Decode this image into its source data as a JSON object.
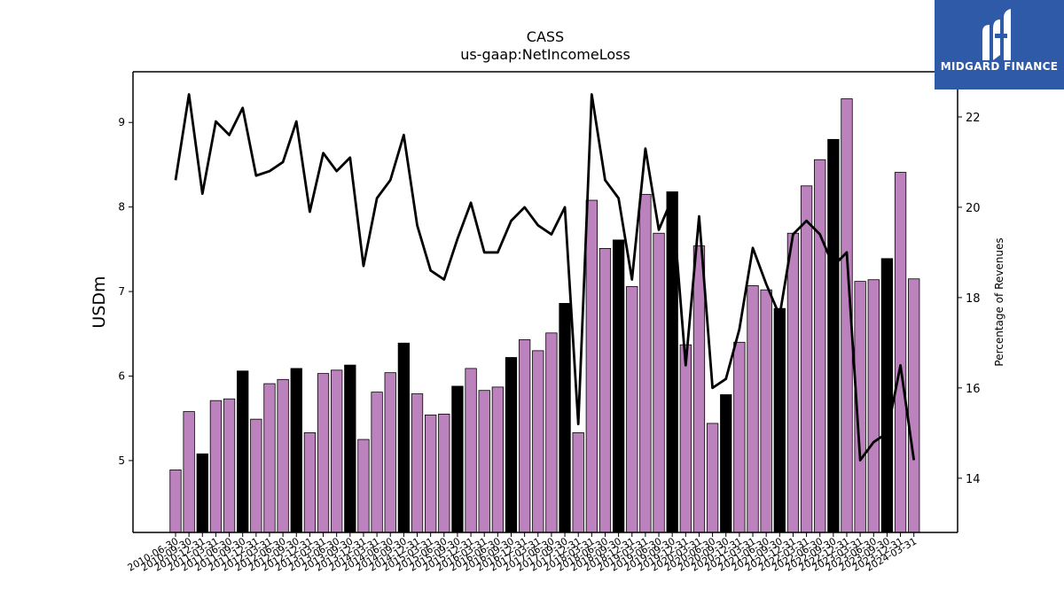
{
  "chart_data": {
    "type": "bar",
    "title": "CASS",
    "subtitle": "us-gaap:NetIncomeLoss",
    "ylabel": "USDm",
    "y2label": "Percentage of Revenues",
    "ylim": [
      4.15,
      9.6
    ],
    "y2lim": [
      12.8,
      23.0
    ],
    "yticks": [
      5,
      6,
      7,
      8,
      9
    ],
    "y2ticks": [
      14,
      16,
      18,
      20,
      22
    ],
    "categories": [
      "2010-06-30",
      "2010-09-30",
      "2010-12-31",
      "2011-03-31",
      "2011-06-30",
      "2011-09-30",
      "2011-12-31",
      "2012-03-31",
      "2012-06-30",
      "2012-09-30",
      "2012-12-31",
      "2013-03-31",
      "2013-06-30",
      "2013-09-30",
      "2013-12-31",
      "2014-03-31",
      "2014-06-30",
      "2014-09-30",
      "2014-12-31",
      "2015-03-31",
      "2015-06-30",
      "2015-09-30",
      "2015-12-31",
      "2016-03-31",
      "2016-06-30",
      "2016-09-30",
      "2016-12-31",
      "2017-03-31",
      "2017-06-30",
      "2017-09-30",
      "2017-12-31",
      "2018-03-31",
      "2018-06-30",
      "2018-09-30",
      "2018-12-31",
      "2019-03-31",
      "2019-06-30",
      "2019-09-30",
      "2019-12-31",
      "2020-03-31",
      "2020-06-30",
      "2020-09-30",
      "2020-12-31",
      "2021-03-31",
      "2021-06-30",
      "2021-09-30",
      "2021-12-31",
      "2022-03-31",
      "2022-06-30",
      "2022-09-30",
      "2022-12-31",
      "2023-03-31",
      "2023-06-30",
      "2023-09-30",
      "2023-12-31",
      "2024-03-31"
    ],
    "series": [
      {
        "kind": "bar",
        "axis": "left",
        "values": [
          4.89,
          5.58,
          5.08,
          5.71,
          5.73,
          6.06,
          5.49,
          5.91,
          5.96,
          6.09,
          5.33,
          6.03,
          6.07,
          6.13,
          5.25,
          5.81,
          6.04,
          6.39,
          5.79,
          5.54,
          5.55,
          5.88,
          6.09,
          5.83,
          5.87,
          6.22,
          6.43,
          6.3,
          6.51,
          6.86,
          5.33,
          8.08,
          7.51,
          7.61,
          7.06,
          8.15,
          7.69,
          8.18,
          6.37,
          7.54,
          5.44,
          5.78,
          6.4,
          7.07,
          7.02,
          6.8,
          7.69,
          8.25,
          8.56,
          8.8,
          9.28,
          7.12,
          7.14,
          7.39,
          8.41,
          7.15
        ],
        "q4_highlight": [
          false,
          false,
          true,
          false,
          false,
          true,
          false,
          false,
          false,
          true,
          false,
          false,
          false,
          true,
          false,
          false,
          false,
          true,
          false,
          false,
          false,
          true,
          false,
          false,
          false,
          true,
          false,
          false,
          false,
          true,
          false,
          false,
          false,
          true,
          false,
          false,
          false,
          true,
          false,
          false,
          false,
          true,
          false,
          false,
          false,
          true,
          false,
          false,
          false,
          true,
          false,
          false,
          false,
          true,
          false,
          false
        ]
      },
      {
        "kind": "line",
        "axis": "right",
        "values": [
          20.6,
          22.5,
          20.3,
          21.9,
          21.6,
          22.2,
          20.7,
          20.8,
          21.0,
          21.9,
          19.9,
          21.2,
          20.8,
          21.1,
          18.7,
          20.2,
          20.6,
          21.6,
          19.6,
          18.6,
          18.4,
          19.3,
          20.1,
          19.0,
          19.0,
          19.7,
          20.0,
          19.6,
          19.4,
          20.0,
          15.2,
          22.5,
          20.6,
          20.2,
          18.4,
          21.3,
          19.5,
          20.2,
          16.5,
          19.8,
          16.0,
          16.2,
          17.3,
          19.1,
          18.3,
          17.6,
          19.4,
          19.7,
          19.4,
          18.7,
          19.0,
          14.4,
          14.8,
          15.0,
          16.5,
          14.4
        ]
      }
    ],
    "colors": {
      "bar_regular": "#bc82bd",
      "bar_q4": "#000000",
      "bar_edge": "#000000",
      "line": "#000000"
    },
    "grid": false,
    "legend": "none"
  },
  "brand": {
    "name": "MIDGARD FINANCE",
    "color": "#2e5aa8"
  }
}
